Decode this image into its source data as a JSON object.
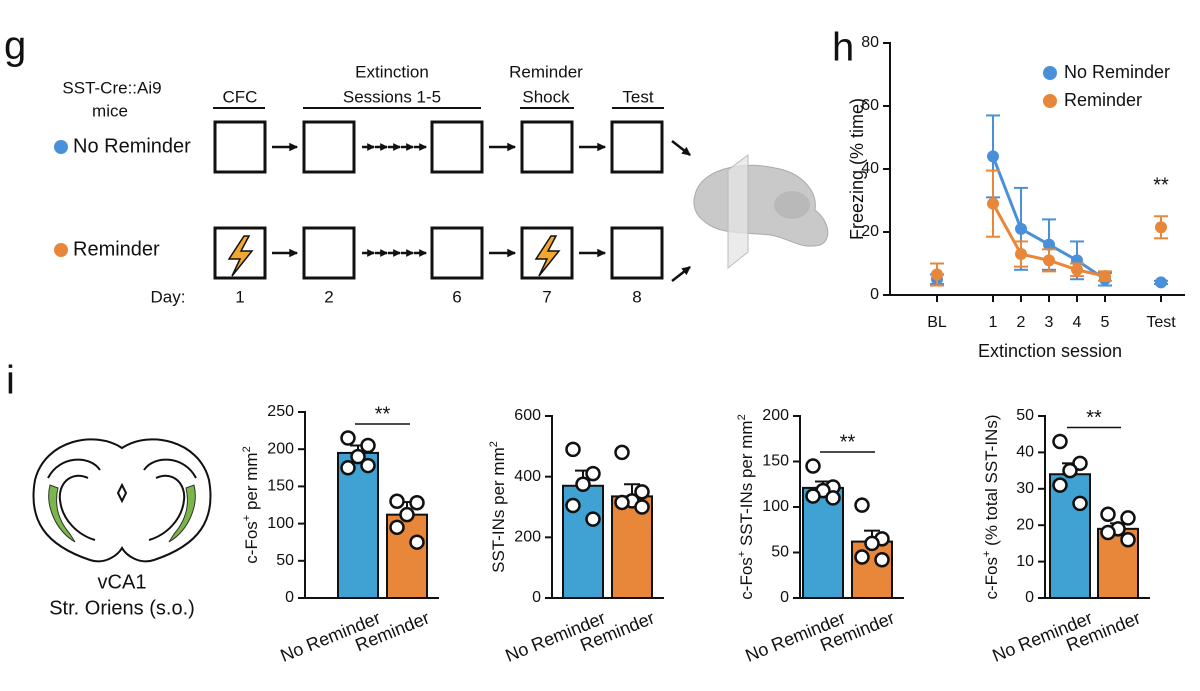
{
  "panel_labels": [
    "g",
    "h",
    "i"
  ],
  "schematic": {
    "mouse_line": "SST-Cre::Ai9",
    "mouse_word": "mice",
    "stages": [
      {
        "lines": [
          "CFC"
        ]
      },
      {
        "lines": [
          "Extinction",
          "Sessions 1-5"
        ]
      },
      {
        "lines": [
          "Reminder",
          "Shock"
        ]
      },
      {
        "lines": [
          "Test"
        ]
      }
    ],
    "groups": [
      {
        "name": "No Reminder",
        "color": "#4a90d9"
      },
      {
        "name": "Reminder",
        "color": "#e8873a"
      }
    ],
    "day_label": "Day:",
    "days": [
      "1",
      "2",
      "6",
      "7",
      "8"
    ]
  },
  "region": {
    "lines": [
      "vCA1",
      "Str. Oriens (s.o.)"
    ]
  },
  "chart_data": [
    {
      "type": "line",
      "ylabel": "Freezing (% time)",
      "xlabel": "Extinction session",
      "categories": [
        "BL",
        "1",
        "2",
        "3",
        "4",
        "5",
        "Test"
      ],
      "series": [
        {
          "name": "No Reminder",
          "color": "#4a90d9",
          "values": [
            5,
            44,
            21,
            16,
            11,
            5,
            4
          ],
          "errors": [
            1.5,
            13,
            13,
            8,
            6,
            2,
            0.5
          ]
        },
        {
          "name": "Reminder",
          "color": "#e8873a",
          "values": [
            6.5,
            29,
            13,
            11,
            8,
            6,
            21.5
          ],
          "errors": [
            3.5,
            10.5,
            4,
            3.5,
            2,
            1.5,
            3.5
          ]
        }
      ],
      "ylim": [
        0,
        80
      ],
      "yticks": [
        0,
        20,
        40,
        60,
        80
      ],
      "legend": "upper right",
      "annotations": [
        {
          "text": "**",
          "category": 6
        }
      ]
    },
    {
      "type": "bar",
      "ylabel": [
        {
          "text": "c-Fos"
        },
        {
          "text": "+",
          "sup": true
        },
        {
          "text": " per mm"
        },
        {
          "text": "2",
          "sup": true
        }
      ],
      "categories": [
        "No Reminder",
        "Reminder"
      ],
      "values": [
        195,
        112
      ],
      "errors": [
        10,
        17
      ],
      "colors": [
        "#3fa2d2",
        "#e8873a"
      ],
      "points": [
        [
          215,
          205,
          190,
          175,
          178
        ],
        [
          130,
          128,
          112,
          95,
          75
        ]
      ],
      "ylim": [
        0,
        250
      ],
      "yticks": [
        0,
        50,
        100,
        150,
        200,
        250
      ],
      "annotations": [
        {
          "text": "**"
        }
      ]
    },
    {
      "type": "bar",
      "ylabel": [
        {
          "text": "SST-INs per mm"
        },
        {
          "text": "2",
          "sup": true
        }
      ],
      "categories": [
        "No Reminder",
        "Reminder"
      ],
      "values": [
        370,
        335
      ],
      "errors": [
        50,
        40
      ],
      "colors": [
        "#3fa2d2",
        "#e8873a"
      ],
      "points": [
        [
          490,
          410,
          375,
          305,
          260
        ],
        [
          480,
          350,
          320,
          315,
          300
        ]
      ],
      "ylim": [
        0,
        600
      ],
      "yticks": [
        0,
        200,
        400,
        600
      ],
      "annotations": []
    },
    {
      "type": "bar",
      "ylabel": [
        {
          "text": "c-Fos"
        },
        {
          "text": "+",
          "sup": true
        },
        {
          "text": "  SST-INs per mm"
        },
        {
          "text": "2",
          "sup": true
        }
      ],
      "categories": [
        "No Reminder",
        "Reminder"
      ],
      "values": [
        121,
        62
      ],
      "errors": [
        7,
        12
      ],
      "colors": [
        "#3fa2d2",
        "#e8873a"
      ],
      "points": [
        [
          145,
          122,
          118,
          112,
          110
        ],
        [
          102,
          65,
          60,
          45,
          42
        ]
      ],
      "ylim": [
        0,
        200
      ],
      "yticks": [
        0,
        50,
        100,
        150,
        200
      ],
      "annotations": [
        {
          "text": "**"
        }
      ]
    },
    {
      "type": "bar",
      "ylabel": [
        {
          "text": "c-Fos"
        },
        {
          "text": "+",
          "sup": true
        },
        {
          "text": " (% total SST-INs)"
        }
      ],
      "categories": [
        "No Reminder",
        "Reminder"
      ],
      "values": [
        34,
        19
      ],
      "errors": [
        3,
        1.5
      ],
      "colors": [
        "#3fa2d2",
        "#e8873a"
      ],
      "points": [
        [
          43,
          37,
          35,
          31,
          26
        ],
        [
          23,
          22,
          19,
          18,
          16
        ]
      ],
      "ylim": [
        0,
        50
      ],
      "yticks": [
        0,
        10,
        20,
        30,
        40,
        50
      ],
      "annotations": [
        {
          "text": "**"
        }
      ]
    }
  ]
}
